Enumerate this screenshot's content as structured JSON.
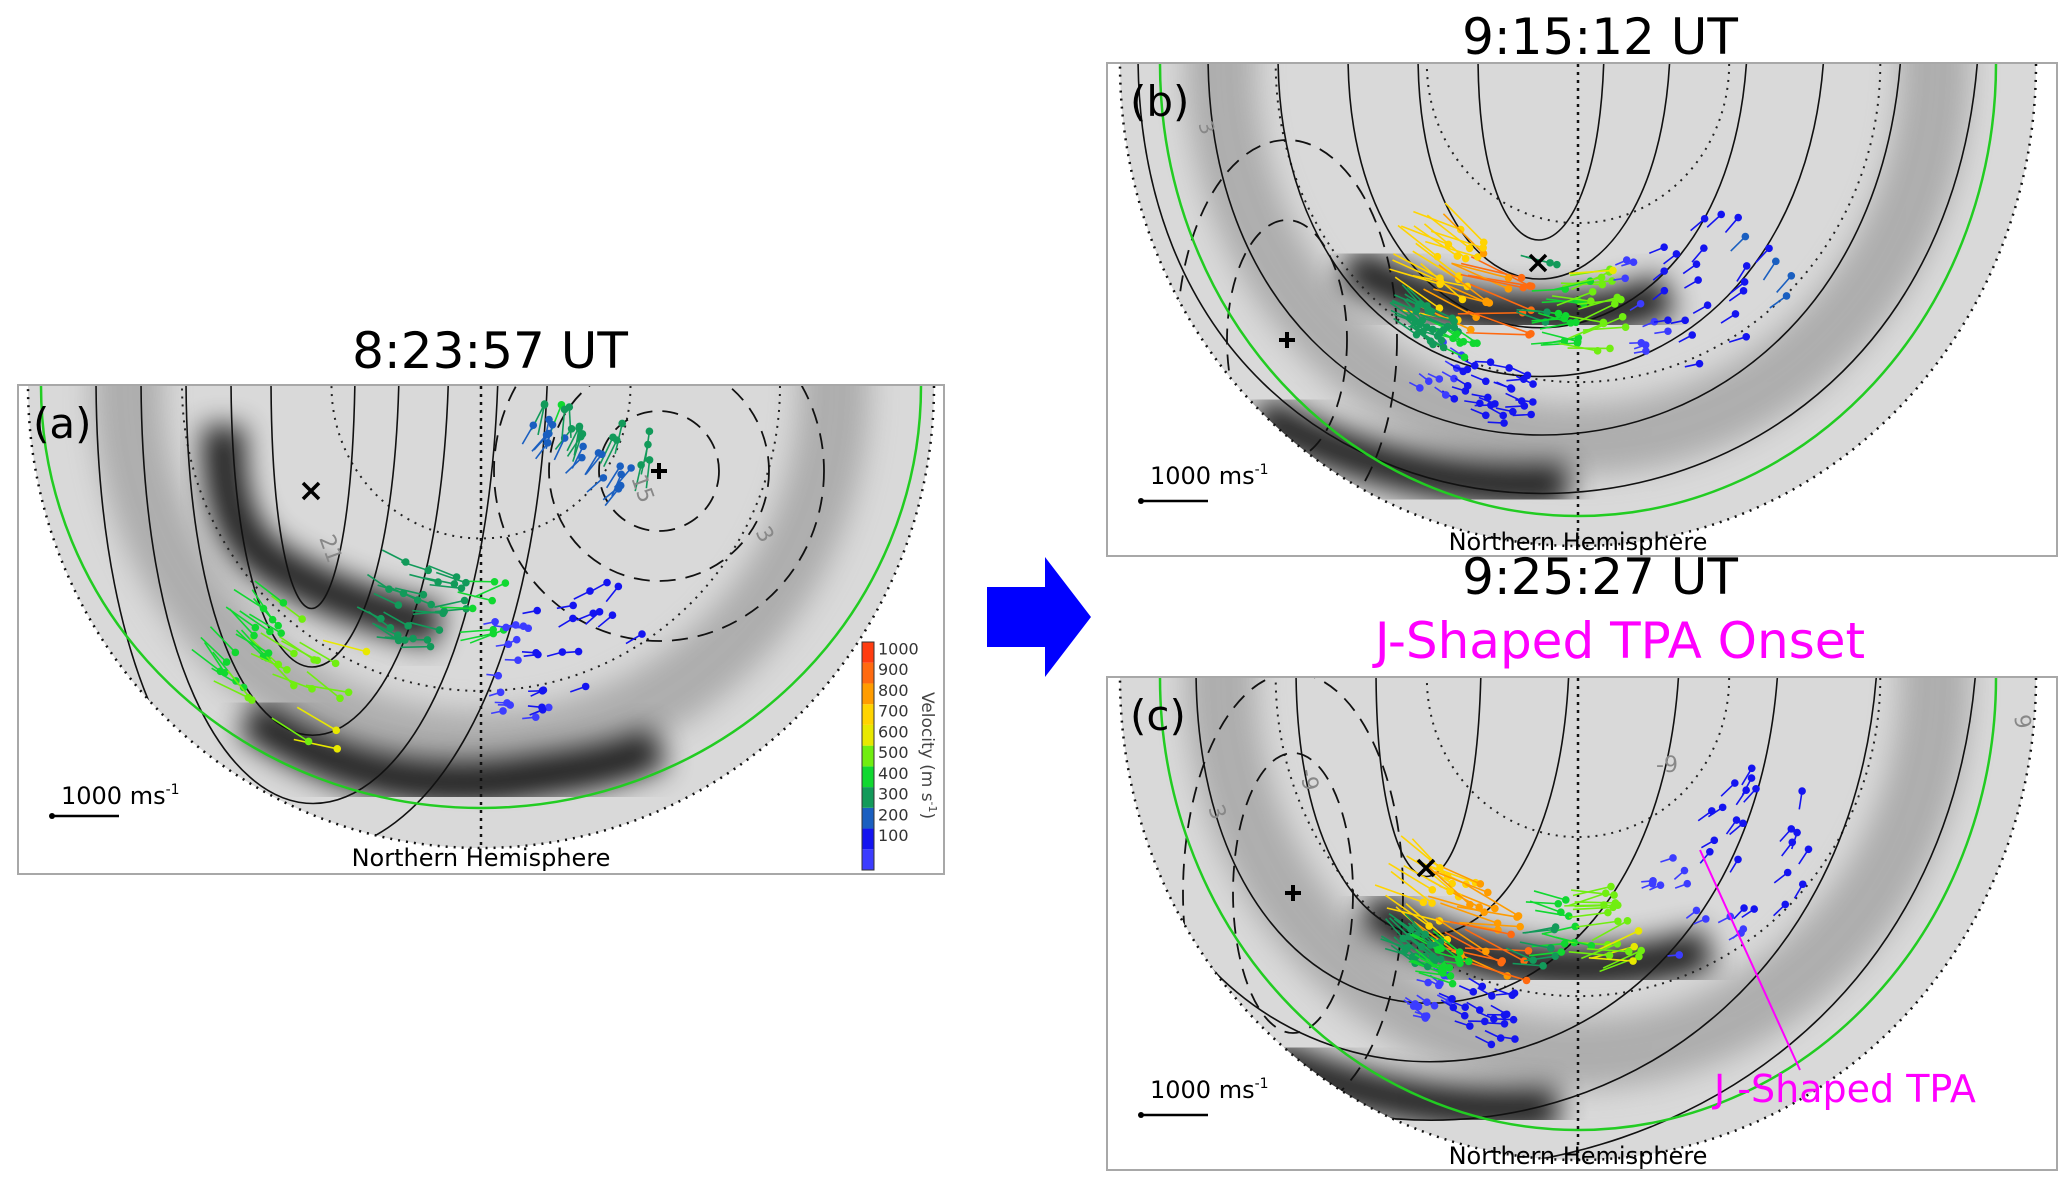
{
  "panels": [
    {
      "id": "a",
      "label": "(a)",
      "title": "8:23:57 UT",
      "scale_label": "1000 ms",
      "scale_exp": "-1",
      "hemisphere": "Northern Hemisphere",
      "contour_labels": [
        "21",
        "15",
        "3"
      ]
    },
    {
      "id": "b",
      "label": "(b)",
      "title": "9:15:12 UT",
      "scale_label": "1000 ms",
      "scale_exp": "-1",
      "hemisphere": "Northern Hemisphere",
      "contour_labels": [
        "3"
      ]
    },
    {
      "id": "c",
      "label": "(c)",
      "title": "9:25:27 UT",
      "subtitle": "J-Shaped TPA Onset",
      "annotation": "J -Shaped TPA",
      "scale_label": "1000 ms",
      "scale_exp": "-1",
      "hemisphere": "Northern Hemisphere",
      "contour_labels": [
        "-9",
        "-9",
        "9",
        "3"
      ]
    }
  ],
  "colorbar": {
    "title": "Velocity (m s",
    "title_exp": "-1",
    "title_end": ")",
    "ticks": [
      "1000",
      "900",
      "800",
      "700",
      "600",
      "500",
      "400",
      "300",
      "200",
      "100"
    ],
    "colors": [
      "#3c3cff",
      "#1414f0",
      "#1a5fc0",
      "#129a5a",
      "#10d830",
      "#70ee10",
      "#e8e800",
      "#ffd400",
      "#ff9c00",
      "#ff6a10",
      "#ff3c10"
    ]
  },
  "colors": {
    "accent_arrow": "#0000ff",
    "annotation": "#ff00ff",
    "boundary": "#22cc22"
  }
}
